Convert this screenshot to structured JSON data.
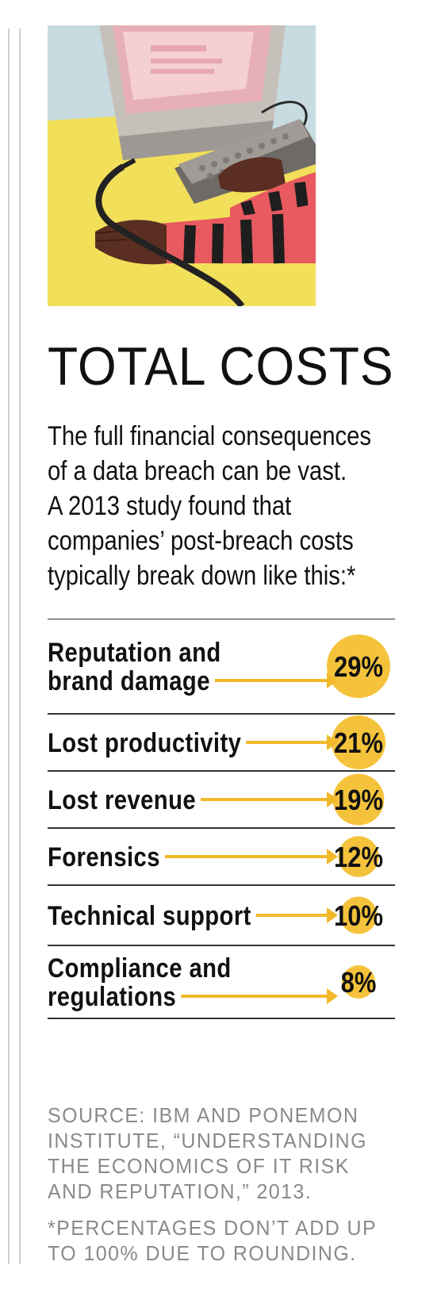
{
  "title": "TOTAL COSTS",
  "intro_lines": [
    "The full financial consequences",
    "of a data breach can be vast.",
    "A 2013 study found that",
    "companies’ post-breach costs",
    "typically break down like this:*"
  ],
  "source_lines": [
    "SOURCE: IBM AND PONEMON",
    "INSTITUTE, “UNDERSTANDING",
    "THE ECONOMICS OF IT RISK",
    "AND REPUTATION,” 2013."
  ],
  "footnote_lines": [
    "*PERCENTAGES DON’T ADD UP",
    "TO 100% DUE TO ROUNDING."
  ],
  "colors": {
    "accent": "#f5c33b",
    "arrow": "#f1b92a",
    "rule": "#333333",
    "notes": "#8a8a8a"
  },
  "chart_data": {
    "type": "bar",
    "title": "TOTAL COSTS",
    "unit": "%",
    "categories": [
      [
        "Reputation and",
        "brand damage"
      ],
      [
        "Lost productivity"
      ],
      [
        "Lost revenue"
      ],
      [
        "Forensics"
      ],
      [
        "Technical support"
      ],
      [
        "Compliance and",
        "regulations"
      ]
    ],
    "values": [
      29,
      21,
      19,
      12,
      10,
      8
    ],
    "value_labels": [
      "29%",
      "21%",
      "19%",
      "12%",
      "10%",
      "8%"
    ]
  }
}
